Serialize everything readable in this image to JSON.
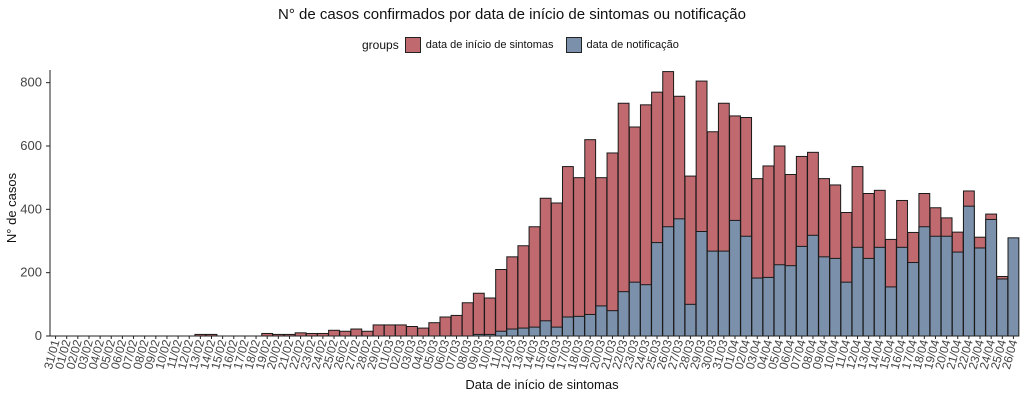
{
  "chart_data": {
    "type": "bar",
    "title": "N° de casos confirmados por data de início de sintomas ou notificação",
    "xlabel": "Data de início de sintomas",
    "ylabel": "N° de casos",
    "ylim": [
      0,
      840
    ],
    "yticks": [
      0,
      200,
      400,
      600,
      800
    ],
    "legend": {
      "title": "groups",
      "position": "top"
    },
    "categories": [
      "31/01",
      "01/02",
      "02/02",
      "03/02",
      "04/02",
      "05/02",
      "06/02",
      "07/02",
      "08/02",
      "09/02",
      "10/02",
      "11/02",
      "12/02",
      "13/02",
      "14/02",
      "15/02",
      "16/02",
      "17/02",
      "18/02",
      "19/02",
      "20/02",
      "21/02",
      "22/02",
      "23/02",
      "24/02",
      "25/02",
      "26/02",
      "27/02",
      "28/02",
      "29/02",
      "01/03",
      "02/03",
      "03/03",
      "04/03",
      "05/03",
      "06/03",
      "07/03",
      "08/03",
      "09/03",
      "10/03",
      "11/03",
      "12/03",
      "13/03",
      "14/03",
      "15/03",
      "16/03",
      "17/03",
      "18/03",
      "19/03",
      "20/03",
      "21/03",
      "22/03",
      "23/03",
      "24/03",
      "25/03",
      "26/03",
      "27/03",
      "28/03",
      "29/03",
      "30/03",
      "31/03",
      "01/04",
      "02/04",
      "03/04",
      "04/04",
      "05/04",
      "06/04",
      "07/04",
      "08/04",
      "09/04",
      "10/04",
      "11/04",
      "12/04",
      "13/04",
      "14/04",
      "15/04",
      "16/04",
      "17/04",
      "18/04",
      "19/04",
      "20/04",
      "21/04",
      "22/04",
      "23/04",
      "24/04",
      "25/04",
      "26/04"
    ],
    "series": [
      {
        "name": "data de início de sintomas",
        "color": "#c0696e",
        "values": [
          0,
          0,
          0,
          0,
          0,
          0,
          0,
          0,
          0,
          0,
          0,
          0,
          0,
          5,
          5,
          0,
          0,
          0,
          0,
          8,
          5,
          5,
          10,
          8,
          8,
          18,
          15,
          22,
          15,
          35,
          35,
          35,
          30,
          25,
          42,
          60,
          65,
          105,
          135,
          120,
          210,
          250,
          285,
          345,
          435,
          420,
          535,
          500,
          620,
          500,
          578,
          735,
          660,
          730,
          770,
          835,
          757,
          505,
          805,
          645,
          735,
          695,
          690,
          497,
          537,
          600,
          510,
          567,
          580,
          497,
          477,
          390,
          535,
          450,
          460,
          305,
          428,
          327,
          450,
          405,
          373,
          328,
          458,
          312,
          385,
          188,
          0
        ]
      },
      {
        "name": "data de notificação",
        "color": "#7b91ab",
        "values": [
          0,
          0,
          0,
          0,
          0,
          0,
          0,
          0,
          0,
          0,
          0,
          0,
          0,
          0,
          0,
          0,
          0,
          0,
          0,
          0,
          0,
          0,
          0,
          0,
          0,
          0,
          0,
          0,
          0,
          0,
          0,
          0,
          0,
          0,
          0,
          0,
          0,
          0,
          5,
          5,
          15,
          22,
          25,
          28,
          48,
          28,
          60,
          62,
          68,
          95,
          80,
          140,
          170,
          162,
          295,
          345,
          370,
          100,
          330,
          268,
          268,
          365,
          315,
          183,
          185,
          225,
          222,
          283,
          318,
          250,
          245,
          170,
          280,
          245,
          280,
          155,
          280,
          232,
          345,
          315,
          315,
          265,
          410,
          278,
          368,
          180,
          310
        ]
      }
    ]
  }
}
